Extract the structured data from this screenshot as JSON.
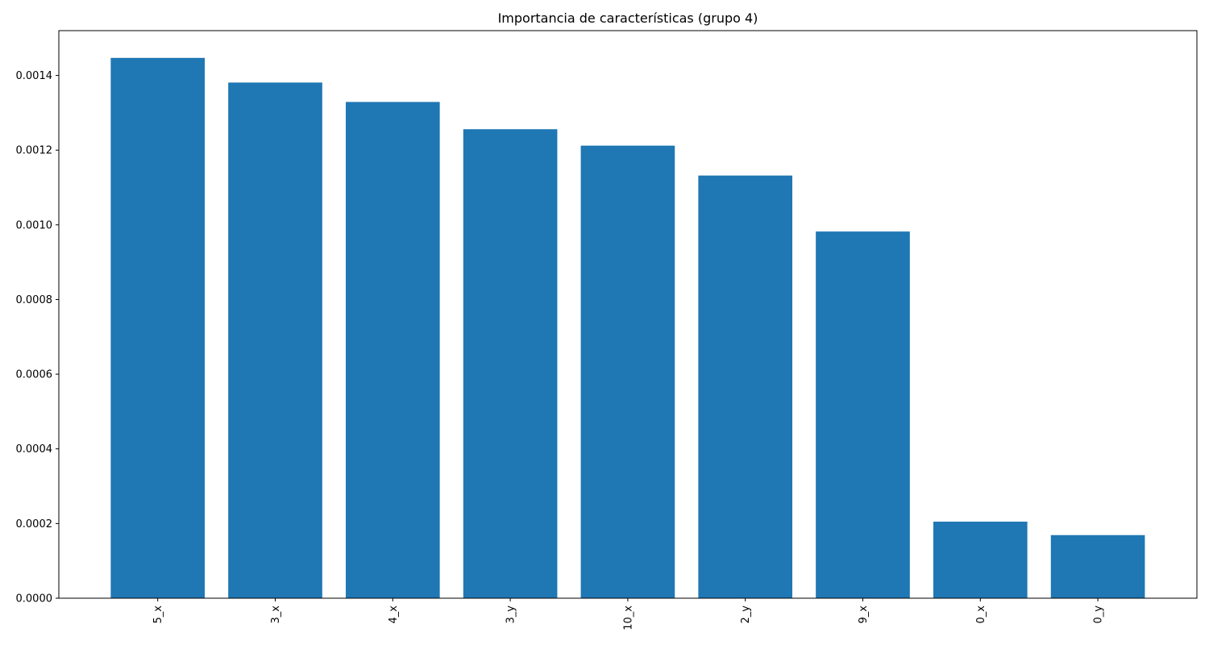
{
  "chart_data": {
    "type": "bar",
    "title": "Importancia de características (grupo 4)",
    "xlabel": "",
    "ylabel": "",
    "categories": [
      "5_x",
      "3_x",
      "4_x",
      "3_y",
      "10_x",
      "2_y",
      "9_x",
      "0_x",
      "0_y"
    ],
    "values": [
      0.001447,
      0.001381,
      0.001329,
      0.001256,
      0.001212,
      0.001132,
      0.000982,
      0.000205,
      0.000169
    ],
    "ylim": [
      0,
      0.00152
    ],
    "yticks": [
      0,
      0.0002,
      0.0004,
      0.0006,
      0.0008,
      0.001,
      0.0012,
      0.0014
    ],
    "ytick_labels": [
      "0.0000",
      "0.0002",
      "0.0004",
      "0.0006",
      "0.0008",
      "0.0010",
      "0.0012",
      "0.0014"
    ],
    "bar_color": "#1f77b4",
    "grid": false,
    "legend": "none"
  }
}
